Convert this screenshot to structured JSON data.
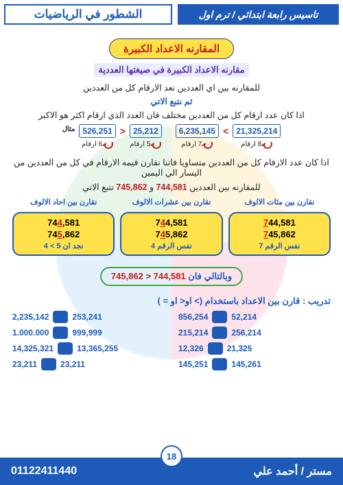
{
  "colors": {
    "blue": "#1e5bb8",
    "yellow": "#ffe24a",
    "red": "#c01e1e",
    "green": "#3fa83f"
  },
  "header": {
    "grade": "تاسيس رابعة ابتدائي / ترم اول",
    "series": "الشطور في الرياضيات"
  },
  "title": "المقارنه الاعداد الكبيرة",
  "subtitle": "مقارنه الاعداد الكبيرة في صيغتها العددية",
  "intro1": "للمقارنه بين اي  العددين نعد الارقام كل من العددين",
  "intro2": "ثم نتبع الاتي",
  "rule1": "اذا كان عدد ارقام كل من العددين مختلف فان العدد الذي ارقام اكثر هو الاكبر",
  "example_label": "مثال",
  "ex": {
    "n1": "526,251",
    "d1": "6 ارقام",
    "n2": "25,212",
    "d2": "5 ارقام",
    "n3": "6,235,145",
    "d3": "7 ارقام",
    "n4": "21,325,214",
    "d4": "8 ارقام",
    "op1": "<",
    "op2": ">"
  },
  "rule2": "اذا كان عدد الارقام  كل من العددين متساويا فاننا نقارن قيمه الارقام في كل من العددين من اليسار الي اليمين",
  "compare_prompt_a": "للمقارنه بين العددين ",
  "compare_a": "744,581",
  "compare_and": " و ",
  "compare_b": "745,862",
  "compare_suffix": " نتبع الاتي",
  "trip": {
    "heads": [
      "نقارن بين مئات الالوف",
      "نقارن بين عشرات الالوف",
      "نقارن بين احاد الالوف"
    ],
    "a_parts": [
      [
        "7",
        "44,581"
      ],
      [
        "74",
        "4",
        ",581"
      ],
      [
        "74",
        "4",
        ",581"
      ]
    ],
    "b_parts": [
      [
        "7",
        "45,862"
      ],
      [
        "74",
        "5",
        ",862"
      ],
      [
        "74",
        "5",
        ",862"
      ]
    ],
    "nums_a": [
      "744,581",
      "744,581",
      "744,581"
    ],
    "nums_b": [
      "745,862",
      "745,862",
      "745,862"
    ],
    "notes": [
      "نفس الرقم  7",
      "نفس الرقم 4",
      "نجد ان 5 > 4"
    ]
  },
  "result_a": "وبالتالي فان ",
  "result_cmp": "745,862  >  744,581",
  "exercise_title": "تدريب : قارن بين الاعداد باستخدام (> او< او = )",
  "exercise": [
    [
      "856,254",
      "52,214",
      "2,235,142",
      "253,241"
    ],
    [
      "215,214",
      "256,214",
      "1.000.000",
      "999,999"
    ],
    [
      "12,326",
      "21,325",
      "14,325,321",
      "13,365,255"
    ],
    [
      "145,251",
      "145,261",
      "23,211",
      "23,211"
    ]
  ],
  "footer": {
    "teacher": "مستر / أحمد علي",
    "phone": "01122411440",
    "page": "18"
  }
}
